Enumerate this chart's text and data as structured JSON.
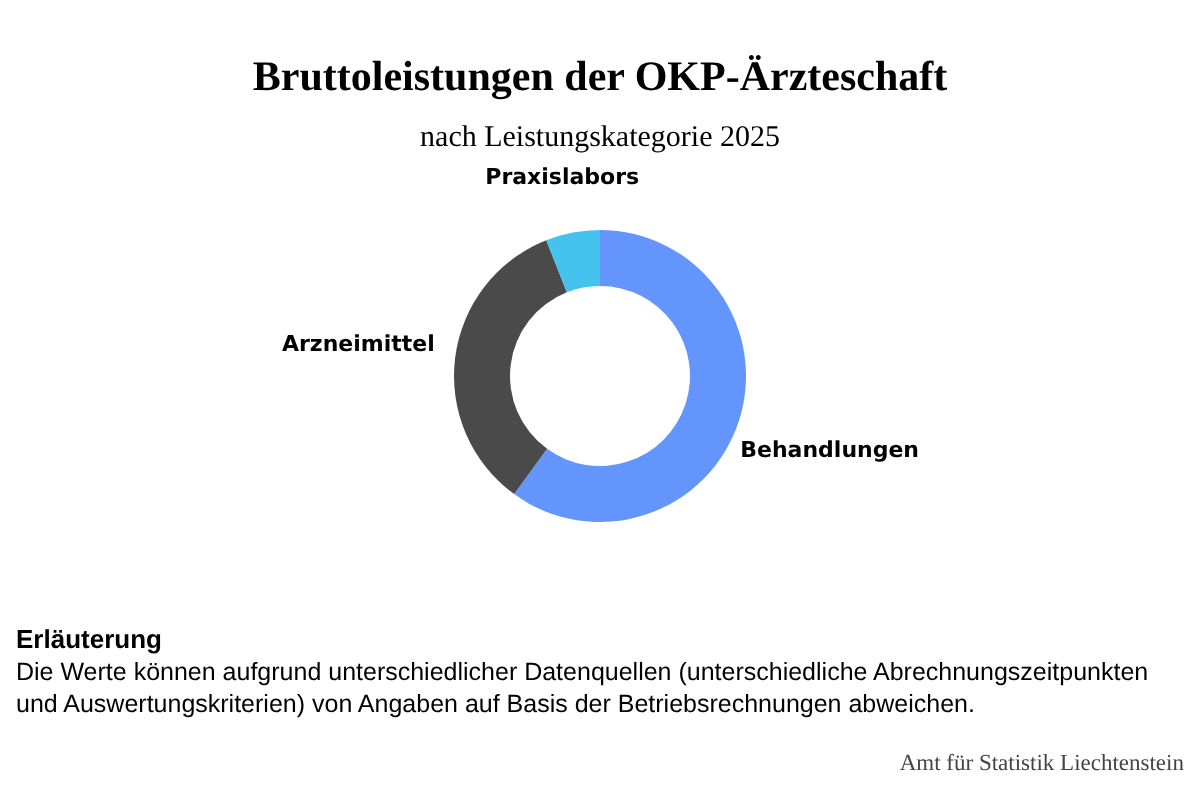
{
  "chart_data": {
    "type": "donut",
    "title": "Bruttoleistungen der OKP-Ärzteschaft",
    "subtitle": "nach Leistungskategorie 2025",
    "categories": [
      "Behandlungen",
      "Arzneimittel",
      "Praxislabors"
    ],
    "values": [
      60,
      34,
      6
    ],
    "colors": [
      "#6495fd",
      "#4a4a4a",
      "#45c3ef"
    ],
    "annotations": [
      "Erläuterung",
      "Die Werte können aufgrund unterschiedlicher Datenquellen (unterschiedliche Abrechnungszeitpunkten und Auswertungskriterien) von Angaben auf Basis der Betriebsrechnungen abweichen.",
      "Amt für Statistik Liechtenstein"
    ]
  }
}
